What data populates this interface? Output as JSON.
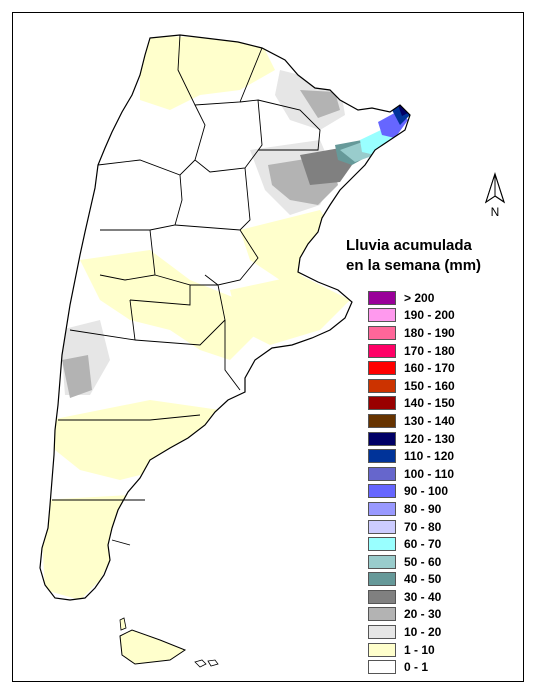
{
  "legend": {
    "title_line1": "Lluvia acumulada",
    "title_line2": "en la semana (mm)",
    "items": [
      {
        "label": "> 200",
        "color": "#990099"
      },
      {
        "label": "190 - 200",
        "color": "#ff99ee"
      },
      {
        "label": "180 - 190",
        "color": "#ff6699"
      },
      {
        "label": "170 - 180",
        "color": "#ff0066"
      },
      {
        "label": "160 - 170",
        "color": "#ff0000"
      },
      {
        "label": "150 - 160",
        "color": "#cc3300"
      },
      {
        "label": "140 - 150",
        "color": "#990000"
      },
      {
        "label": "130 - 140",
        "color": "#663300"
      },
      {
        "label": "120 - 130",
        "color": "#000066"
      },
      {
        "label": "110 - 120",
        "color": "#003399"
      },
      {
        "label": "100 - 110",
        "color": "#6666cc"
      },
      {
        "label": "90 - 100",
        "color": "#6666ff"
      },
      {
        "label": "80 - 90",
        "color": "#9999ff"
      },
      {
        "label": "70 - 80",
        "color": "#ccccff"
      },
      {
        "label": "60 - 70",
        "color": "#99ffff"
      },
      {
        "label": "50 - 60",
        "color": "#99cccc"
      },
      {
        "label": "40 - 50",
        "color": "#669999"
      },
      {
        "label": "30 - 40",
        "color": "#808080"
      },
      {
        "label": "20 - 30",
        "color": "#b3b3b3"
      },
      {
        "label": "10 - 20",
        "color": "#e6e6e6"
      },
      {
        "label": "1 - 10",
        "color": "#ffffcc"
      },
      {
        "label": "0 - 1",
        "color": "#ffffff"
      }
    ]
  },
  "north_arrow": {
    "label": "N"
  },
  "map": {
    "colors": {
      "land": "#ffffff",
      "light": "#ffffcc",
      "gray10": "#e6e6e6",
      "gray20": "#b3b3b3",
      "gray30": "#808080",
      "teal40": "#669999",
      "teal50": "#99cccc",
      "cyan60": "#99ffff",
      "blue90": "#6666ff",
      "blue110": "#003399",
      "navy120": "#000066"
    }
  }
}
